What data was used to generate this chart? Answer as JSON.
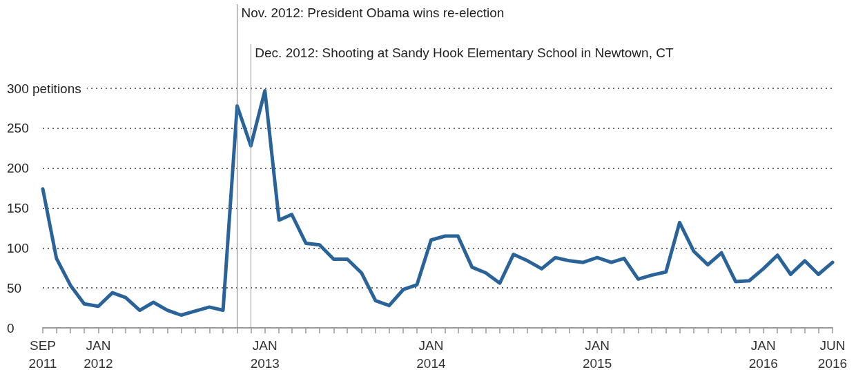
{
  "chart_data": {
    "type": "line",
    "x": [
      "2011-09",
      "2011-10",
      "2011-11",
      "2011-12",
      "2012-01",
      "2012-02",
      "2012-03",
      "2012-04",
      "2012-05",
      "2012-06",
      "2012-07",
      "2012-08",
      "2012-09",
      "2012-10",
      "2012-11",
      "2012-12",
      "2013-01",
      "2013-02",
      "2013-03",
      "2013-04",
      "2013-05",
      "2013-06",
      "2013-07",
      "2013-08",
      "2013-09",
      "2013-10",
      "2013-11",
      "2013-12",
      "2014-01",
      "2014-02",
      "2014-03",
      "2014-04",
      "2014-05",
      "2014-06",
      "2014-07",
      "2014-08",
      "2014-09",
      "2014-10",
      "2014-11",
      "2014-12",
      "2015-01",
      "2015-02",
      "2015-03",
      "2015-04",
      "2015-05",
      "2015-06",
      "2015-07",
      "2015-08",
      "2015-09",
      "2015-10",
      "2015-11",
      "2015-12",
      "2016-01",
      "2016-02",
      "2016-03",
      "2016-04",
      "2016-05",
      "2016-06"
    ],
    "series": [
      {
        "color": "#2a6399",
        "values": [
          174,
          87,
          53,
          30,
          27,
          44,
          38,
          22,
          32,
          22,
          16,
          21,
          26,
          22,
          278,
          228,
          297,
          135,
          142,
          106,
          104,
          86,
          86,
          69,
          34,
          28,
          48,
          54,
          110,
          115,
          115,
          76,
          69,
          56,
          92,
          84,
          74,
          88,
          84,
          82,
          88,
          82,
          87,
          61,
          66,
          70,
          132,
          96,
          79,
          94,
          58,
          59,
          74,
          91,
          67,
          84,
          67,
          82
        ]
      }
    ],
    "xlim": [
      "2011-09",
      "2016-06"
    ],
    "xticks": [
      {
        "value": "2011-09",
        "label": "SEP 2011"
      },
      {
        "value": "2011-10",
        "label": null
      },
      {
        "value": "2011-11",
        "label": null
      },
      {
        "value": "2011-12",
        "label": null
      },
      {
        "value": "2012-01",
        "label": "JAN 2012"
      },
      {
        "value": "2012-02",
        "label": null
      },
      {
        "value": "2012-03",
        "label": null
      },
      {
        "value": "2012-04",
        "label": null
      },
      {
        "value": "2012-05",
        "label": null
      },
      {
        "value": "2012-06",
        "label": null
      },
      {
        "value": "2012-07",
        "label": null
      },
      {
        "value": "2012-08",
        "label": null
      },
      {
        "value": "2012-09",
        "label": null
      },
      {
        "value": "2012-10",
        "label": null
      },
      {
        "value": "2012-11",
        "label": null
      },
      {
        "value": "2012-12",
        "label": null
      },
      {
        "value": "2013-01",
        "label": "JAN 2013"
      },
      {
        "value": "2013-02",
        "label": null
      },
      {
        "value": "2013-03",
        "label": null
      },
      {
        "value": "2013-04",
        "label": null
      },
      {
        "value": "2013-05",
        "label": null
      },
      {
        "value": "2013-06",
        "label": null
      },
      {
        "value": "2013-07",
        "label": null
      },
      {
        "value": "2013-08",
        "label": null
      },
      {
        "value": "2013-09",
        "label": null
      },
      {
        "value": "2013-10",
        "label": null
      },
      {
        "value": "2013-11",
        "label": null
      },
      {
        "value": "2013-12",
        "label": null
      },
      {
        "value": "2014-01",
        "label": "JAN 2014"
      },
      {
        "value": "2014-02",
        "label": null
      },
      {
        "value": "2014-03",
        "label": null
      },
      {
        "value": "2014-04",
        "label": null
      },
      {
        "value": "2014-05",
        "label": null
      },
      {
        "value": "2014-06",
        "label": null
      },
      {
        "value": "2014-07",
        "label": null
      },
      {
        "value": "2014-08",
        "label": null
      },
      {
        "value": "2014-09",
        "label": null
      },
      {
        "value": "2014-10",
        "label": null
      },
      {
        "value": "2014-11",
        "label": null
      },
      {
        "value": "2014-12",
        "label": null
      },
      {
        "value": "2015-01",
        "label": "JAN 2015"
      },
      {
        "value": "2015-02",
        "label": null
      },
      {
        "value": "2015-03",
        "label": null
      },
      {
        "value": "2015-04",
        "label": null
      },
      {
        "value": "2015-05",
        "label": null
      },
      {
        "value": "2015-06",
        "label": null
      },
      {
        "value": "2015-07",
        "label": null
      },
      {
        "value": "2015-08",
        "label": null
      },
      {
        "value": "2015-09",
        "label": null
      },
      {
        "value": "2015-10",
        "label": null
      },
      {
        "value": "2015-11",
        "label": null
      },
      {
        "value": "2015-12",
        "label": null
      },
      {
        "value": "2016-01",
        "label": "JAN 2016"
      },
      {
        "value": "2016-02",
        "label": null
      },
      {
        "value": "2016-03",
        "label": null
      },
      {
        "value": "2016-04",
        "label": null
      },
      {
        "value": "2016-05",
        "label": null
      },
      {
        "value": "2016-06",
        "label": "JUN 2016"
      }
    ],
    "ylim": [
      0,
      300
    ],
    "yticks": [
      0,
      50,
      100,
      150,
      200,
      250,
      {
        "value": 300,
        "label": "300 petitions"
      }
    ],
    "grid": "y",
    "marker": "none",
    "line_style": "solid",
    "ref_lines": [
      {
        "axis": "x",
        "value": "2012-11",
        "label": "Nov. 2012: President Obama wins re-election",
        "color": "#777777"
      },
      {
        "axis": "x",
        "value": "2012-12",
        "label": "Dec. 2012: Shooting at Sandy Hook Elementary School in Newtown, CT",
        "color": "#999999"
      }
    ]
  }
}
